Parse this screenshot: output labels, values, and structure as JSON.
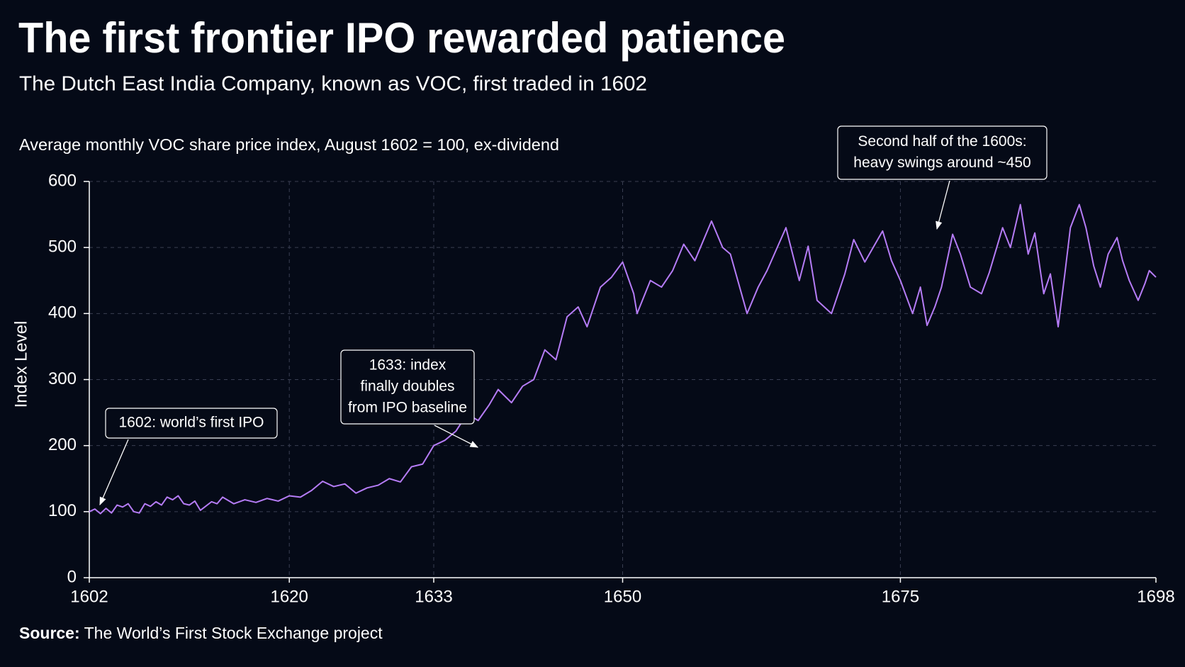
{
  "chart_data": {
    "type": "line",
    "title": "The first frontier IPO rewarded patience",
    "subtitle": "The Dutch East India Company, known as VOC, first traded in 1602",
    "note": "Average monthly VOC share price index, August 1602 = 100, ex-dividend",
    "ylabel": "Index Level",
    "source": {
      "label": "Source:",
      "text": "The World’s First Stock Exchange project"
    },
    "color": "#b57cf6",
    "grid": true,
    "xlim": [
      1602,
      1698
    ],
    "xticks": [
      1602,
      1620,
      1633,
      1650,
      1675,
      1698
    ],
    "ylim": [
      0,
      600
    ],
    "yticks": [
      0,
      100,
      200,
      300,
      400,
      500,
      600
    ],
    "x": [
      1602,
      1602.5,
      1603,
      1603.5,
      1604,
      1604.5,
      1605,
      1605.5,
      1606,
      1606.5,
      1607,
      1607.5,
      1608,
      1608.5,
      1609,
      1609.5,
      1610,
      1610.5,
      1611,
      1611.5,
      1612,
      1613,
      1613.5,
      1614,
      1615,
      1616,
      1617,
      1618,
      1619,
      1620,
      1621,
      1622,
      1623,
      1624,
      1625,
      1626,
      1627,
      1628,
      1629,
      1630,
      1631,
      1632,
      1633,
      1634,
      1635,
      1636,
      1637,
      1638,
      1638.8,
      1640,
      1641,
      1642,
      1643,
      1644,
      1645,
      1646,
      1646.8,
      1648,
      1649,
      1650,
      1651,
      1651.3,
      1652.5,
      1653.5,
      1654.5,
      1655.5,
      1656.5,
      1658,
      1659,
      1659.7,
      1661.2,
      1662.2,
      1663,
      1664.7,
      1665.9,
      1666.7,
      1667.5,
      1668.8,
      1670,
      1670.8,
      1671.8,
      1673.4,
      1674.2,
      1675,
      1676.1,
      1676.8,
      1677.4,
      1678.1,
      1678.7,
      1679.7,
      1680.4,
      1681.3,
      1682.3,
      1683,
      1684.2,
      1684.9,
      1685.8,
      1686.5,
      1687.1,
      1687.9,
      1688.5,
      1689.2,
      1689.8,
      1690.3,
      1691.1,
      1691.7,
      1692.4,
      1693,
      1693.7,
      1694.5,
      1695,
      1695.6,
      1696.4,
      1697,
      1697.4,
      1698
    ],
    "values": [
      100,
      104,
      97,
      105,
      98,
      110,
      107,
      112,
      100,
      98,
      112,
      108,
      115,
      110,
      122,
      118,
      124,
      112,
      110,
      116,
      102,
      115,
      112,
      122,
      112,
      118,
      114,
      120,
      116,
      124,
      122,
      132,
      146,
      138,
      142,
      128,
      136,
      140,
      150,
      145,
      168,
      172,
      200,
      208,
      222,
      248,
      238,
      262,
      285,
      265,
      290,
      300,
      345,
      330,
      395,
      410,
      380,
      440,
      455,
      478,
      430,
      400,
      450,
      440,
      465,
      505,
      480,
      540,
      500,
      490,
      400,
      440,
      465,
      530,
      450,
      502,
      420,
      400,
      460,
      512,
      478,
      525,
      480,
      450,
      400,
      440,
      382,
      410,
      440,
      520,
      490,
      440,
      430,
      462,
      530,
      500,
      565,
      490,
      522,
      430,
      460,
      380,
      460,
      530,
      565,
      530,
      472,
      440,
      490,
      515,
      480,
      450,
      420,
      445,
      465,
      455
    ],
    "annotations": [
      {
        "lines": [
          "1602: world’s first IPO"
        ]
      },
      {
        "lines": [
          "1633: index",
          "finally doubles",
          "from IPO baseline"
        ]
      },
      {
        "lines": [
          "Second half of the 1600s:",
          "heavy swings around ~450"
        ]
      }
    ]
  }
}
